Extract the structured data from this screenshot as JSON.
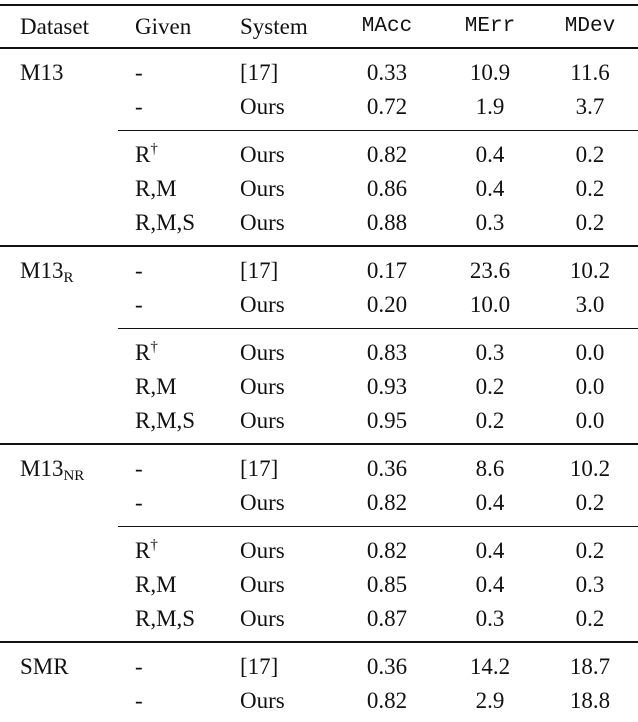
{
  "table": {
    "header": [
      "Dataset",
      "Given",
      "System",
      "MAcc",
      "MErr",
      "MDev"
    ],
    "groups": [
      {
        "dataset": "M13",
        "blocks": [
          [
            {
              "given": "-",
              "system": "[17]",
              "values": [
                "0.33",
                "10.9",
                "11.6"
              ]
            },
            {
              "given": "-",
              "system": "Ours",
              "values": [
                "0.72",
                "1.9",
                "3.7"
              ]
            }
          ],
          [
            {
              "given": "R",
              "given_sup": "†",
              "system": "Ours",
              "values": [
                "0.82",
                "0.4",
                "0.2"
              ]
            },
            {
              "given": "R,M",
              "system": "Ours",
              "values": [
                "0.86",
                "0.4",
                "0.2"
              ]
            },
            {
              "given": "R,M,S",
              "system": "Ours",
              "values": [
                "0.88",
                "0.3",
                "0.2"
              ]
            }
          ]
        ]
      },
      {
        "dataset": "M13",
        "dataset_sub": "R",
        "blocks": [
          [
            {
              "given": "-",
              "system": "[17]",
              "values": [
                "0.17",
                "23.6",
                "10.2"
              ]
            },
            {
              "given": "-",
              "system": "Ours",
              "values": [
                "0.20",
                "10.0",
                "3.0"
              ]
            }
          ],
          [
            {
              "given": "R",
              "given_sup": "†",
              "system": "Ours",
              "values": [
                "0.83",
                "0.3",
                "0.0"
              ]
            },
            {
              "given": "R,M",
              "system": "Ours",
              "values": [
                "0.93",
                "0.2",
                "0.0"
              ]
            },
            {
              "given": "R,M,S",
              "system": "Ours",
              "values": [
                "0.95",
                "0.2",
                "0.0"
              ]
            }
          ]
        ]
      },
      {
        "dataset": "M13",
        "dataset_sub": "NR",
        "blocks": [
          [
            {
              "given": "-",
              "system": "[17]",
              "values": [
                "0.36",
                "8.6",
                "10.2"
              ]
            },
            {
              "given": "-",
              "system": "Ours",
              "values": [
                "0.82",
                "0.4",
                "0.2"
              ]
            }
          ],
          [
            {
              "given": "R",
              "given_sup": "†",
              "system": "Ours",
              "values": [
                "0.82",
                "0.4",
                "0.2"
              ]
            },
            {
              "given": "R,M",
              "system": "Ours",
              "values": [
                "0.85",
                "0.4",
                "0.3"
              ]
            },
            {
              "given": "R,M,S",
              "system": "Ours",
              "values": [
                "0.87",
                "0.3",
                "0.2"
              ]
            }
          ]
        ]
      },
      {
        "dataset": "SMR",
        "blocks": [
          [
            {
              "given": "-",
              "system": "[17]",
              "values": [
                "0.36",
                "14.2",
                "18.7"
              ]
            },
            {
              "given": "-",
              "system": "Ours",
              "values": [
                "0.82",
                "2.9",
                "18.8"
              ]
            }
          ]
        ]
      }
    ]
  }
}
